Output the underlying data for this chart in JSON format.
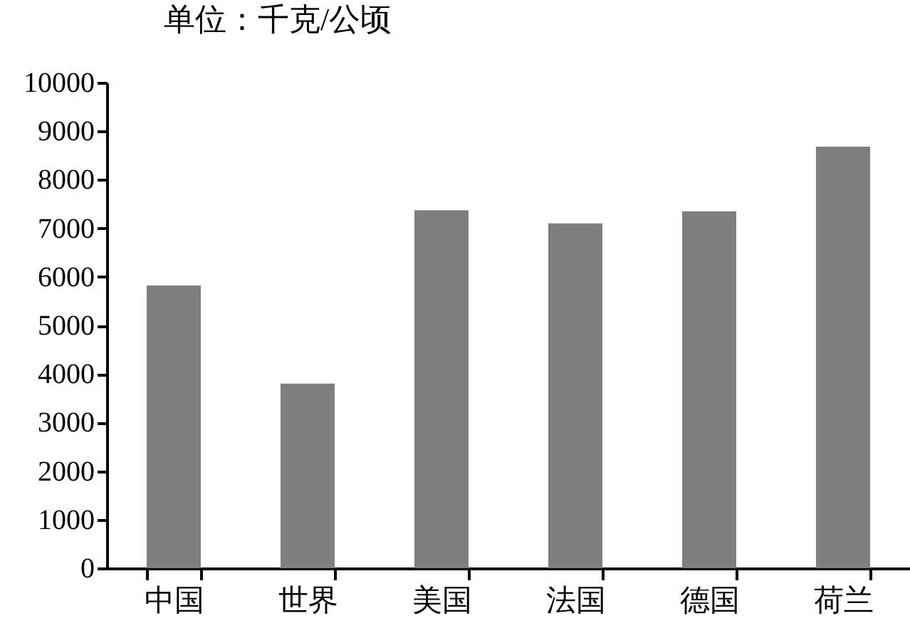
{
  "chart_data": {
    "type": "bar",
    "title": "单位：千克/公顷",
    "categories": [
      "中国",
      "世界",
      "美国",
      "法国",
      "德国",
      "荷兰"
    ],
    "values": [
      5820,
      3800,
      7370,
      7100,
      7350,
      8680
    ],
    "color": "#7f7f7f",
    "ylim": [
      0,
      10000
    ],
    "yticks": [
      0,
      1000,
      2000,
      3000,
      4000,
      5000,
      6000,
      7000,
      8000,
      9000,
      10000
    ],
    "grid": false
  }
}
